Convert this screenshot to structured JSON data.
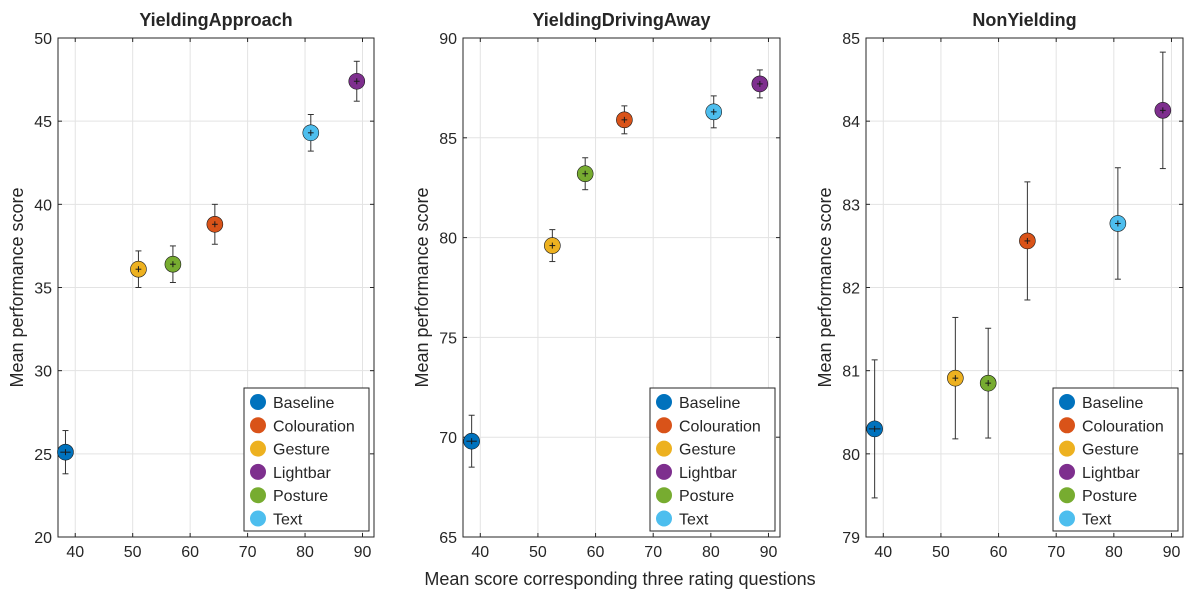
{
  "figure": {
    "shared_xlabel": "Mean score corresponding three rating questions"
  },
  "colors": {
    "Baseline": "#0072BD",
    "Colouration": "#D95319",
    "Gesture": "#EDB120",
    "Lightbar": "#7E2F8E",
    "Posture": "#77AC30",
    "Text": "#4DBEEE"
  },
  "chart_data": [
    {
      "type": "scatter",
      "title": "YieldingApproach",
      "xlabel": "",
      "ylabel": "Mean performance score",
      "xlim": [
        37,
        92
      ],
      "ylim": [
        20,
        50
      ],
      "xticks": [
        40,
        50,
        60,
        70,
        80,
        90
      ],
      "yticks": [
        20,
        25,
        30,
        35,
        40,
        45,
        50
      ],
      "grid": true,
      "legend_position": "bottom-right",
      "series": [
        {
          "name": "Baseline",
          "x": 38.3,
          "y": 25.1,
          "yerr": 1.3,
          "xerr": 0.9
        },
        {
          "name": "Colouration",
          "x": 64.3,
          "y": 38.8,
          "yerr": 1.2,
          "xerr": 0.5
        },
        {
          "name": "Gesture",
          "x": 51.0,
          "y": 36.1,
          "yerr": 1.1,
          "xerr": 0.5
        },
        {
          "name": "Lightbar",
          "x": 89.0,
          "y": 47.4,
          "yerr": 1.2,
          "xerr": 0.5
        },
        {
          "name": "Posture",
          "x": 57.0,
          "y": 36.4,
          "yerr": 1.1,
          "xerr": 0.5
        },
        {
          "name": "Text",
          "x": 81.0,
          "y": 44.3,
          "yerr": 1.1,
          "xerr": 0.5
        }
      ]
    },
    {
      "type": "scatter",
      "title": "YieldingDrivingAway",
      "xlabel": "",
      "ylabel": "Mean performance score",
      "xlim": [
        37,
        92
      ],
      "ylim": [
        65,
        90
      ],
      "xticks": [
        40,
        50,
        60,
        70,
        80,
        90
      ],
      "yticks": [
        65,
        70,
        75,
        80,
        85,
        90
      ],
      "grid": true,
      "legend_position": "bottom-right",
      "series": [
        {
          "name": "Baseline",
          "x": 38.5,
          "y": 69.8,
          "yerr": 1.3,
          "xerr": 0.9
        },
        {
          "name": "Colouration",
          "x": 65.0,
          "y": 85.9,
          "yerr": 0.7,
          "xerr": 0.5
        },
        {
          "name": "Gesture",
          "x": 52.5,
          "y": 79.6,
          "yerr": 0.8,
          "xerr": 0.5
        },
        {
          "name": "Lightbar",
          "x": 88.5,
          "y": 87.7,
          "yerr": 0.7,
          "xerr": 0.5
        },
        {
          "name": "Posture",
          "x": 58.2,
          "y": 83.2,
          "yerr": 0.8,
          "xerr": 0.5
        },
        {
          "name": "Text",
          "x": 80.5,
          "y": 86.3,
          "yerr": 0.8,
          "xerr": 0.5
        }
      ]
    },
    {
      "type": "scatter",
      "title": "NonYielding",
      "xlabel": "",
      "ylabel": "Mean performance score",
      "xlim": [
        37,
        92
      ],
      "ylim": [
        79,
        85
      ],
      "xticks": [
        40,
        50,
        60,
        70,
        80,
        90
      ],
      "yticks": [
        79,
        80,
        81,
        82,
        83,
        84,
        85
      ],
      "grid": true,
      "legend_position": "bottom-right",
      "series": [
        {
          "name": "Baseline",
          "x": 38.5,
          "y": 80.3,
          "yerr": 0.83,
          "xerr": 1.0
        },
        {
          "name": "Colouration",
          "x": 65.0,
          "y": 82.56,
          "yerr": 0.71,
          "xerr": 0.5
        },
        {
          "name": "Gesture",
          "x": 52.5,
          "y": 80.91,
          "yerr": 0.73,
          "xerr": 0.5
        },
        {
          "name": "Lightbar",
          "x": 88.5,
          "y": 84.13,
          "yerr": 0.7,
          "xerr": 0.5
        },
        {
          "name": "Posture",
          "x": 58.2,
          "y": 80.85,
          "yerr": 0.66,
          "xerr": 0.5
        },
        {
          "name": "Text",
          "x": 80.7,
          "y": 82.77,
          "yerr": 0.67,
          "xerr": 0.5
        }
      ]
    }
  ]
}
